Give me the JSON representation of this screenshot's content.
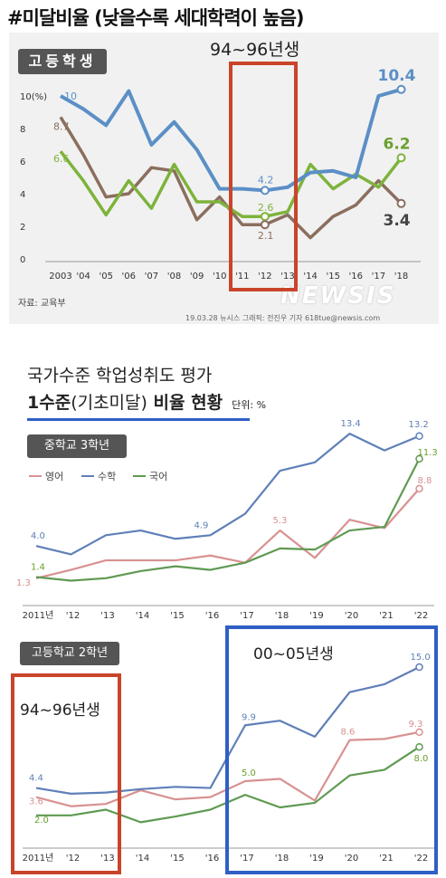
{
  "headline": "#미달비율 (낮을수록 세대학력이 높음)",
  "chart1": {
    "badge": "고등학생",
    "annotation": "94~96년생",
    "source": "자료: 교육부",
    "credit": "19.03.28 뉴시스 그래픽: 전진우 기자 618tue@newsis.com",
    "watermark": "NEWSIS"
  },
  "chart2": {
    "title": "국가수준 학업성취도 평가",
    "subtitle_main": "1수준",
    "subtitle_paren": "(기초미달)",
    "subtitle_rest": " 비율 현황",
    "unit": "단위: %",
    "badge_mid": "중학교 3학년",
    "badge_high": "고등학교 2학년",
    "annotation_high_a": "94~96년생",
    "annotation_high_b": "00~05년생"
  },
  "colors": {
    "blue": "#5b8fc6",
    "brown": "#8b6e5e",
    "green": "#7db33c",
    "pink": "#d89191",
    "navy": "#5f7fb8",
    "dkgreen": "#5f9a52"
  },
  "chart_data": [
    {
      "type": "line",
      "title": "고등학생",
      "categories": [
        "2003",
        "'04",
        "'05",
        "'06",
        "'07",
        "'08",
        "'09",
        "'10",
        "'11",
        "'12",
        "'13",
        "'14",
        "'15",
        "'16",
        "'17",
        "'18"
      ],
      "ylim": [
        0,
        10
      ],
      "yticks": [
        "0",
        "2",
        "4",
        "6",
        "8",
        "10(%)"
      ],
      "series": [
        {
          "name": "blue",
          "values": [
            10,
            9.2,
            8.2,
            10.3,
            7,
            8.4,
            6.7,
            4.3,
            4.3,
            4.2,
            4.4,
            5.3,
            5.4,
            5.0,
            10.0,
            10.4
          ]
        },
        {
          "name": "brown",
          "values": [
            8.7,
            6.4,
            3.8,
            4.0,
            5.6,
            5.4,
            2.4,
            3.8,
            2.1,
            2.1,
            2.7,
            1.3,
            2.6,
            3.3,
            4.8,
            3.4
          ]
        },
        {
          "name": "green",
          "values": [
            6.6,
            4.8,
            2.7,
            4.8,
            3.1,
            5.8,
            3.5,
            3.5,
            2.6,
            2.6,
            2.9,
            5.8,
            4.3,
            5.2,
            4.4,
            6.2
          ]
        }
      ],
      "labels": {
        "10": "10",
        "8.7": "8.7",
        "6.6": "6.6",
        "4.2": "4.2",
        "2.6": "2.6",
        "2.1": "2.1",
        "10.4": "10.4",
        "6.2": "6.2",
        "3.4": "3.4"
      }
    },
    {
      "type": "line",
      "title": "중학교 3학년",
      "categories": [
        "2011년",
        "'12",
        "'13",
        "'14",
        "'15",
        "'16",
        "'17",
        "'18",
        "'19",
        "'20",
        "'21",
        "'22"
      ],
      "series": [
        {
          "name": "영어",
          "values": [
            1.3,
            2.0,
            2.8,
            2.8,
            2.8,
            3.2,
            2.6,
            5.3,
            3.0,
            6.2,
            5.5,
            8.8
          ]
        },
        {
          "name": "수학",
          "values": [
            4.0,
            3.3,
            4.9,
            5.3,
            4.6,
            4.9,
            6.7,
            10.3,
            11.0,
            13.4,
            12.0,
            13.2
          ]
        },
        {
          "name": "국어",
          "values": [
            1.4,
            1.1,
            1.3,
            1.9,
            2.3,
            2.0,
            2.6,
            3.8,
            3.7,
            5.3,
            5.6,
            11.3
          ]
        }
      ],
      "data_labels": [
        "4.0",
        "4.9",
        "13.4",
        "13.2",
        "11.3",
        "8.8",
        "5.3",
        "1.4",
        "1.3"
      ],
      "legend": [
        "영어",
        "수학",
        "국어"
      ]
    },
    {
      "type": "line",
      "title": "고등학교 2학년",
      "categories": [
        "2011년",
        "'12",
        "'13",
        "'14",
        "'15",
        "'16",
        "'17",
        "'18",
        "'19",
        "'20",
        "'21",
        "'22"
      ],
      "series": [
        {
          "name": "영어",
          "values": [
            3.6,
            2.8,
            3.0,
            4.2,
            3.4,
            3.6,
            5.0,
            5.2,
            3.3,
            8.6,
            8.7,
            9.3
          ]
        },
        {
          "name": "수학",
          "values": [
            4.4,
            3.9,
            4.0,
            4.3,
            4.5,
            4.4,
            9.9,
            10.3,
            8.9,
            12.8,
            13.5,
            15.0
          ]
        },
        {
          "name": "국어",
          "values": [
            2.0,
            2.0,
            2.5,
            1.4,
            1.9,
            2.5,
            3.8,
            2.7,
            3.1,
            5.5,
            6.0,
            8.0
          ]
        }
      ],
      "data_labels": [
        "4.4",
        "3.6",
        "2.0",
        "9.9",
        "5.0",
        "8.6",
        "9.3",
        "8.0",
        "15.0"
      ]
    }
  ]
}
